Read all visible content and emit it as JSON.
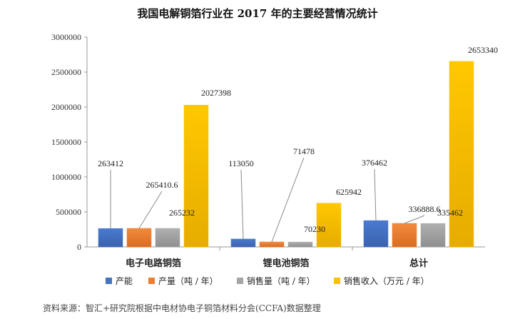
{
  "chart_data": {
    "type": "bar",
    "title": "我国电解铜箔行业在 2017 年的主要经营情况统计",
    "xlabel": "",
    "ylabel": "",
    "ylim": [
      0,
      3000000
    ],
    "yticks": [
      0,
      500000,
      1000000,
      1500000,
      2000000,
      2500000,
      3000000
    ],
    "yticklabels": [
      "0",
      "500000",
      "1000000",
      "1500000",
      "2000000",
      "2500000",
      "3000000"
    ],
    "grid": false,
    "legend_position": "bottom",
    "categories": [
      "电子电路铜箔",
      "锂电池铜箔",
      "总计"
    ],
    "series": [
      {
        "name": "产能",
        "color": "#4472C4",
        "values": [
          263412,
          113050,
          376462
        ],
        "labels": [
          "263412",
          "113050",
          "376462"
        ]
      },
      {
        "name": "产量（吨 / 年）",
        "color": "#ED7D31",
        "values": [
          265410.6,
          71478,
          336888.6
        ],
        "labels": [
          "265410.6",
          "71478",
          "336888.6"
        ]
      },
      {
        "name": "销售量（吨 / 年）",
        "color": "#A5A5A5",
        "values": [
          265232,
          70230,
          335462
        ],
        "labels": [
          "265232",
          "70230",
          "335462"
        ]
      },
      {
        "name": "销售收入（万元 / 年）",
        "color": "#FFC000",
        "values": [
          2027398,
          625942,
          2653340
        ],
        "labels": [
          "2027398",
          "625942",
          "2653340"
        ]
      }
    ]
  },
  "source_note": "资料来源：智汇+研究院根据中电材协电子铜箔材料分会(CCFA)数据整理"
}
